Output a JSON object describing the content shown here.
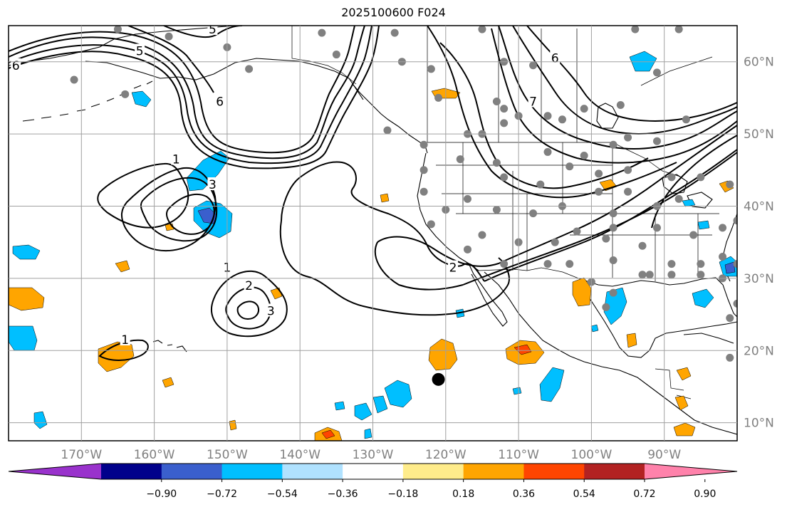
{
  "title": "2025100600 F024",
  "map": {
    "lon_range": [
      -180,
      -80
    ],
    "lat_range": [
      7.5,
      65
    ],
    "lon_ticks": [
      {
        "value": -170,
        "label": "170°W"
      },
      {
        "value": -160,
        "label": "160°W"
      },
      {
        "value": -150,
        "label": "150°W"
      },
      {
        "value": -140,
        "label": "140°W"
      },
      {
        "value": -130,
        "label": "130°W"
      },
      {
        "value": -120,
        "label": "120°W"
      },
      {
        "value": -110,
        "label": "110°W"
      },
      {
        "value": -100,
        "label": "100°W"
      },
      {
        "value": -90,
        "label": "90°W"
      }
    ],
    "lat_ticks": [
      {
        "value": 60,
        "label": "60°N"
      },
      {
        "value": 50,
        "label": "50°N"
      },
      {
        "value": 40,
        "label": "40°N"
      },
      {
        "value": 30,
        "label": "30°N"
      },
      {
        "value": 20,
        "label": "20°N"
      },
      {
        "value": 10,
        "label": "10°N"
      }
    ],
    "marker": {
      "lon": -121,
      "lat": 16
    }
  },
  "colorbar": {
    "ticks": [
      "−0.90",
      "−0.72",
      "−0.54",
      "−0.36",
      "−0.18",
      "0.18",
      "0.36",
      "0.54",
      "0.72",
      "0.90"
    ],
    "colors": [
      "#9932cc",
      "#00008b",
      "#3a5fcd",
      "#00bfff",
      "#b0e2ff",
      "#ffffff",
      "#ffec8b",
      "#ffa500",
      "#ff4500",
      "#b22222",
      "#ff82ab"
    ]
  },
  "contour_labels": [
    {
      "text": "6",
      "lon": -179,
      "lat": 59.5
    },
    {
      "text": "5",
      "lon": -162,
      "lat": 61.5
    },
    {
      "text": "5",
      "lon": -152,
      "lat": 64.5
    },
    {
      "text": "6",
      "lon": -151,
      "lat": 54.5
    },
    {
      "text": "1",
      "lon": -157,
      "lat": 46.5
    },
    {
      "text": "3",
      "lon": -152,
      "lat": 43
    },
    {
      "text": "1",
      "lon": -150,
      "lat": 31.5
    },
    {
      "text": "2",
      "lon": -147,
      "lat": 29
    },
    {
      "text": "3",
      "lon": -144,
      "lat": 25.5
    },
    {
      "text": "1",
      "lon": -164,
      "lat": 21.5
    },
    {
      "text": "2",
      "lon": -119,
      "lat": 31.5
    },
    {
      "text": "6",
      "lon": -105,
      "lat": 60.5
    },
    {
      "text": "7",
      "lon": -108,
      "lat": 54.5
    }
  ],
  "stations": [
    [
      -165,
      64.5
    ],
    [
      -137,
      64
    ],
    [
      -135,
      61
    ],
    [
      -127,
      64
    ],
    [
      -115,
      64.5
    ],
    [
      -94,
      64.5
    ],
    [
      -88,
      64.5
    ],
    [
      -171,
      57.5
    ],
    [
      -164,
      55.5
    ],
    [
      -158,
      63.5
    ],
    [
      -150,
      62
    ],
    [
      -147,
      59
    ],
    [
      -126,
      60
    ],
    [
      -122,
      59
    ],
    [
      -112,
      60
    ],
    [
      -108,
      59.5
    ],
    [
      -91,
      58.5
    ],
    [
      -121,
      55
    ],
    [
      -113,
      54.5
    ],
    [
      -112,
      53.5
    ],
    [
      -110,
      52.5
    ],
    [
      -96,
      54
    ],
    [
      -101,
      53.5
    ],
    [
      -106,
      52.5
    ],
    [
      -104,
      52
    ],
    [
      -112,
      51.5
    ],
    [
      -115,
      50
    ],
    [
      -117,
      50
    ],
    [
      -128,
      50.5
    ],
    [
      -123,
      48.5
    ],
    [
      -118,
      46.5
    ],
    [
      -113,
      46
    ],
    [
      -106,
      47.5
    ],
    [
      -101,
      47
    ],
    [
      -97,
      48.5
    ],
    [
      -95,
      49.5
    ],
    [
      -91,
      49
    ],
    [
      -87,
      52
    ],
    [
      -99,
      44.5
    ],
    [
      -99,
      42
    ],
    [
      -123,
      42
    ],
    [
      -123,
      45
    ],
    [
      -112,
      44
    ],
    [
      -107,
      43
    ],
    [
      -103,
      45.5
    ],
    [
      -95,
      45
    ],
    [
      -89,
      44
    ],
    [
      -85,
      44
    ],
    [
      -81,
      43
    ],
    [
      -88,
      41
    ],
    [
      -91,
      40
    ],
    [
      -95,
      42
    ],
    [
      -97,
      39
    ],
    [
      -104,
      40
    ],
    [
      -108,
      39
    ],
    [
      -113,
      39.5
    ],
    [
      -117,
      41
    ],
    [
      -120,
      39.5
    ],
    [
      -122,
      37.5
    ],
    [
      -115,
      36
    ],
    [
      -110,
      35
    ],
    [
      -105,
      35
    ],
    [
      -102,
      36.5
    ],
    [
      -97,
      37
    ],
    [
      -91,
      37
    ],
    [
      -86,
      36
    ],
    [
      -82,
      37
    ],
    [
      -80,
      38
    ],
    [
      -98,
      35.5
    ],
    [
      -93,
      34.5
    ],
    [
      -89,
      32
    ],
    [
      -85,
      32
    ],
    [
      -82,
      33
    ],
    [
      -80,
      32
    ],
    [
      -117,
      34
    ],
    [
      -112,
      32
    ],
    [
      -106,
      32
    ],
    [
      -103,
      32
    ],
    [
      -97,
      32.5
    ],
    [
      -93,
      30.5
    ],
    [
      -89,
      30.5
    ],
    [
      -85,
      30.5
    ],
    [
      -82,
      30
    ],
    [
      -80,
      26.5
    ],
    [
      -81,
      24.5
    ],
    [
      -92,
      30.5
    ],
    [
      -100,
      29.5
    ],
    [
      -97,
      28
    ],
    [
      -98,
      26
    ],
    [
      -81,
      19
    ]
  ]
}
